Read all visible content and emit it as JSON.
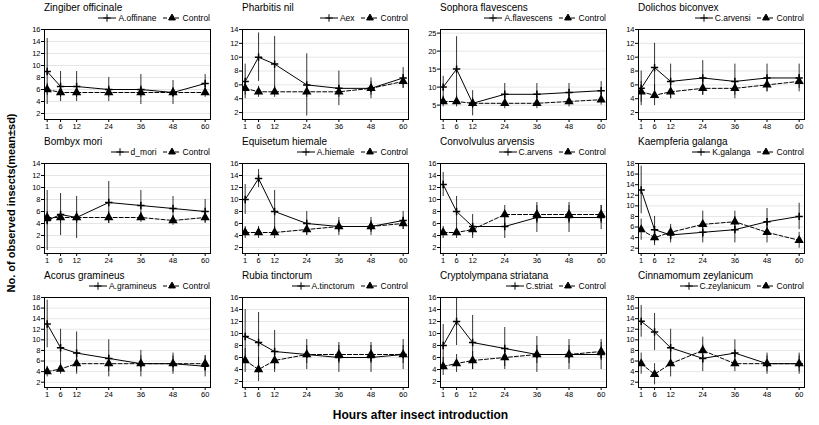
{
  "x_label": "Hours after insect introduction",
  "y_label": "No. of observed insects(mean±sd)",
  "chart_data": [
    {
      "type": "line",
      "title": "Zingiber officinale",
      "x": [
        1,
        6,
        12,
        24,
        36,
        48,
        60
      ],
      "xlim": [
        0,
        62
      ],
      "xticks": [
        1,
        6,
        12,
        24,
        36,
        48,
        60
      ],
      "ylim": [
        1,
        16
      ],
      "yticks": [
        2,
        4,
        6,
        8,
        10,
        12,
        14,
        16
      ],
      "grid": true,
      "legend": "upper right",
      "series": [
        {
          "name": "A.offinane",
          "color": "black",
          "line_style": "solid",
          "marker": "plus",
          "values": [
            9.0,
            6.5,
            6.5,
            6.0,
            6.0,
            5.5,
            7.0
          ],
          "yerr": [
            5.5,
            2.5,
            2.5,
            2.0,
            2.5,
            2.0,
            1.5
          ]
        },
        {
          "name": "Control",
          "color": "black",
          "line_style": "dashed",
          "marker": "triangle",
          "values": [
            6.0,
            5.5,
            5.5,
            5.5,
            5.5,
            5.5,
            5.5
          ],
          "yerr": [
            1.0,
            0.8,
            0.8,
            0.8,
            0.8,
            0.8,
            0.8
          ]
        }
      ]
    },
    {
      "type": "line",
      "title": "Pharbitis nil",
      "x": [
        1,
        6,
        12,
        24,
        36,
        48,
        60
      ],
      "xlim": [
        0,
        62
      ],
      "xticks": [
        1,
        6,
        12,
        24,
        36,
        48,
        60
      ],
      "ylim": [
        1,
        14
      ],
      "yticks": [
        2,
        4,
        6,
        8,
        10,
        12,
        14
      ],
      "grid": true,
      "legend": "upper right",
      "series": [
        {
          "name": "Aex",
          "color": "black",
          "line_style": "solid",
          "marker": "plus",
          "values": [
            6.5,
            10.0,
            9.0,
            6.0,
            5.5,
            5.5,
            7.0
          ],
          "yerr": [
            2.5,
            3.5,
            4.0,
            4.5,
            2.5,
            1.5,
            1.5
          ]
        },
        {
          "name": "Control",
          "color": "black",
          "line_style": "dashed",
          "marker": "triangle",
          "values": [
            5.5,
            5.0,
            5.0,
            5.0,
            5.0,
            5.5,
            6.5
          ],
          "yerr": [
            1.0,
            0.8,
            0.8,
            0.8,
            0.8,
            1.0,
            1.0
          ]
        }
      ]
    },
    {
      "type": "line",
      "title": "Sophora flavescens",
      "x": [
        1,
        6,
        12,
        24,
        36,
        48,
        60
      ],
      "xlim": [
        0,
        62
      ],
      "xticks": [
        1,
        6,
        12,
        24,
        36,
        48,
        60
      ],
      "ylim": [
        1,
        26
      ],
      "yticks": [
        5,
        10,
        15,
        20,
        25
      ],
      "grid": true,
      "legend": "upper right",
      "series": [
        {
          "name": "A.flavescens",
          "color": "black",
          "line_style": "solid",
          "marker": "plus",
          "values": [
            10.0,
            15.0,
            5.5,
            8.0,
            8.0,
            8.5,
            9.0
          ],
          "yerr": [
            3.0,
            9.0,
            3.5,
            3.0,
            3.0,
            2.5,
            2.5
          ]
        },
        {
          "name": "Control",
          "color": "black",
          "line_style": "dashed",
          "marker": "triangle",
          "values": [
            6.0,
            6.0,
            5.5,
            5.5,
            5.5,
            6.0,
            6.5
          ],
          "yerr": [
            1.5,
            1.5,
            1.5,
            1.5,
            1.5,
            1.5,
            1.5
          ]
        }
      ]
    },
    {
      "type": "line",
      "title": "Dolichos biconvex",
      "x": [
        1,
        6,
        12,
        24,
        36,
        48,
        60
      ],
      "xlim": [
        0,
        62
      ],
      "xticks": [
        1,
        6,
        12,
        24,
        36,
        48,
        60
      ],
      "ylim": [
        1,
        14
      ],
      "yticks": [
        2,
        4,
        6,
        8,
        10,
        12,
        14
      ],
      "grid": true,
      "legend": "upper right",
      "series": [
        {
          "name": "C.arvensi",
          "color": "black",
          "line_style": "solid",
          "marker": "plus",
          "values": [
            5.5,
            8.5,
            6.5,
            7.0,
            6.5,
            7.0,
            7.0
          ],
          "yerr": [
            2.5,
            3.5,
            2.5,
            2.5,
            2.5,
            2.0,
            2.0
          ]
        },
        {
          "name": "Control",
          "color": "black",
          "line_style": "dashed",
          "marker": "triangle",
          "values": [
            5.0,
            4.5,
            5.0,
            5.5,
            5.5,
            6.0,
            6.5
          ],
          "yerr": [
            1.5,
            1.5,
            1.0,
            1.0,
            1.0,
            1.0,
            1.0
          ]
        }
      ]
    },
    {
      "type": "line",
      "title": "Bombyx mori",
      "x": [
        1,
        6,
        12,
        24,
        36,
        48,
        60
      ],
      "xlim": [
        0,
        62
      ],
      "xticks": [
        1,
        6,
        12,
        24,
        36,
        48,
        60
      ],
      "ylim": [
        -1,
        14
      ],
      "yticks": [
        0,
        2,
        4,
        6,
        8,
        10,
        12,
        14
      ],
      "grid": true,
      "legend": "upper right",
      "series": [
        {
          "name": "d_mori",
          "color": "black",
          "line_style": "solid",
          "marker": "plus",
          "values": [
            4.5,
            5.5,
            5.0,
            7.5,
            7.0,
            6.5,
            6.0
          ],
          "yerr": [
            5.0,
            3.5,
            3.5,
            3.5,
            2.5,
            2.0,
            2.0
          ]
        },
        {
          "name": "Control",
          "color": "black",
          "line_style": "dashed",
          "marker": "triangle",
          "values": [
            5.0,
            5.0,
            5.0,
            5.0,
            5.0,
            4.5,
            5.0
          ],
          "yerr": [
            1.0,
            1.0,
            1.0,
            1.0,
            0.8,
            0.8,
            0.8
          ]
        }
      ]
    },
    {
      "type": "line",
      "title": "Equisetum hiemale",
      "x": [
        1,
        6,
        12,
        24,
        36,
        48,
        60
      ],
      "xlim": [
        0,
        62
      ],
      "xticks": [
        1,
        6,
        12,
        24,
        36,
        48,
        60
      ],
      "ylim": [
        1,
        16
      ],
      "yticks": [
        2,
        4,
        6,
        8,
        10,
        12,
        14,
        16
      ],
      "grid": true,
      "legend": "upper right",
      "series": [
        {
          "name": "A.hiemale",
          "color": "black",
          "line_style": "solid",
          "marker": "plus",
          "values": [
            10.0,
            13.5,
            8.0,
            6.0,
            5.5,
            5.5,
            6.5
          ],
          "yerr": [
            2.5,
            1.5,
            3.5,
            2.0,
            1.5,
            1.5,
            1.5
          ]
        },
        {
          "name": "Control",
          "color": "black",
          "line_style": "dashed",
          "marker": "triangle",
          "values": [
            4.5,
            4.5,
            4.5,
            5.0,
            5.5,
            5.5,
            6.0
          ],
          "yerr": [
            1.0,
            1.0,
            1.0,
            1.0,
            1.0,
            1.0,
            1.0
          ]
        }
      ]
    },
    {
      "type": "line",
      "title": "Convolvulus arvensis",
      "x": [
        1,
        6,
        12,
        24,
        36,
        48,
        60
      ],
      "xlim": [
        0,
        62
      ],
      "xticks": [
        1,
        6,
        12,
        24,
        36,
        48,
        60
      ],
      "ylim": [
        1,
        16
      ],
      "yticks": [
        2,
        4,
        6,
        8,
        10,
        12,
        14,
        16
      ],
      "grid": true,
      "legend": "upper right",
      "series": [
        {
          "name": "C.arvens",
          "color": "black",
          "line_style": "solid",
          "marker": "plus",
          "values": [
            12.5,
            8.0,
            5.5,
            5.5,
            7.0,
            7.0,
            7.0
          ],
          "yerr": [
            2.0,
            2.5,
            2.0,
            2.0,
            2.5,
            2.5,
            2.0
          ]
        },
        {
          "name": "Control",
          "color": "black",
          "line_style": "dashed",
          "marker": "triangle",
          "values": [
            4.5,
            4.5,
            5.0,
            7.5,
            7.5,
            7.5,
            7.5
          ],
          "yerr": [
            1.0,
            1.0,
            1.0,
            1.5,
            1.5,
            1.5,
            1.5
          ]
        }
      ]
    },
    {
      "type": "line",
      "title": "Kaempferia galanga",
      "x": [
        1,
        6,
        12,
        24,
        36,
        48,
        60
      ],
      "xlim": [
        0,
        62
      ],
      "xticks": [
        1,
        6,
        12,
        24,
        36,
        48,
        60
      ],
      "ylim": [
        1,
        18
      ],
      "yticks": [
        2,
        4,
        6,
        8,
        10,
        12,
        14,
        16,
        18
      ],
      "grid": true,
      "legend": "upper right",
      "series": [
        {
          "name": "K.galanga",
          "color": "black",
          "line_style": "solid",
          "marker": "plus",
          "values": [
            13.0,
            5.5,
            4.5,
            5.0,
            5.5,
            7.0,
            8.0
          ],
          "yerr": [
            4.5,
            2.5,
            1.5,
            2.0,
            2.5,
            2.5,
            2.5
          ]
        },
        {
          "name": "Control",
          "color": "black",
          "line_style": "dashed",
          "marker": "triangle",
          "values": [
            5.5,
            4.0,
            5.0,
            6.5,
            7.0,
            5.0,
            3.5
          ],
          "yerr": [
            2.0,
            1.5,
            1.5,
            2.5,
            2.0,
            2.0,
            1.5
          ]
        }
      ]
    },
    {
      "type": "line",
      "title": "Acorus gramineus",
      "x": [
        1,
        6,
        12,
        24,
        36,
        48,
        60
      ],
      "xlim": [
        0,
        62
      ],
      "xticks": [
        1,
        6,
        12,
        24,
        36,
        48,
        60
      ],
      "ylim": [
        1,
        18
      ],
      "yticks": [
        2,
        4,
        6,
        8,
        10,
        12,
        14,
        16,
        18
      ],
      "grid": true,
      "legend": "upper right",
      "series": [
        {
          "name": "A.gramineus",
          "color": "black",
          "line_style": "solid",
          "marker": "plus",
          "values": [
            13.0,
            8.5,
            7.5,
            6.5,
            5.5,
            5.5,
            5.0
          ],
          "yerr": [
            4.5,
            3.5,
            4.0,
            3.5,
            2.5,
            2.0,
            2.0
          ]
        },
        {
          "name": "Control",
          "color": "black",
          "line_style": "dashed",
          "marker": "triangle",
          "values": [
            4.0,
            4.5,
            5.5,
            5.5,
            5.5,
            5.5,
            5.5
          ],
          "yerr": [
            1.0,
            1.0,
            1.5,
            1.5,
            1.5,
            1.5,
            1.5
          ]
        }
      ]
    },
    {
      "type": "line",
      "title": "Rubia tinctorum",
      "x": [
        1,
        6,
        12,
        24,
        36,
        48,
        60
      ],
      "xlim": [
        0,
        62
      ],
      "xticks": [
        1,
        6,
        12,
        24,
        36,
        48,
        60
      ],
      "ylim": [
        1,
        16
      ],
      "yticks": [
        2,
        4,
        6,
        8,
        10,
        12,
        14,
        16
      ],
      "grid": true,
      "legend": "upper right",
      "series": [
        {
          "name": "A.tinctorum",
          "color": "black",
          "line_style": "solid",
          "marker": "plus",
          "values": [
            9.5,
            8.5,
            7.0,
            6.5,
            6.0,
            6.0,
            6.5
          ],
          "yerr": [
            4.5,
            5.0,
            3.5,
            2.5,
            2.5,
            2.5,
            2.5
          ]
        },
        {
          "name": "Control",
          "color": "black",
          "line_style": "dashed",
          "marker": "triangle",
          "values": [
            5.5,
            4.0,
            5.5,
            6.5,
            6.5,
            6.5,
            6.5
          ],
          "yerr": [
            2.0,
            2.0,
            1.5,
            1.5,
            1.5,
            1.5,
            1.5
          ]
        }
      ]
    },
    {
      "type": "line",
      "title": "Cryptolympana striatana",
      "x": [
        1,
        6,
        12,
        24,
        36,
        48,
        60
      ],
      "xlim": [
        0,
        62
      ],
      "xticks": [
        1,
        6,
        12,
        24,
        36,
        48,
        60
      ],
      "ylim": [
        1,
        16
      ],
      "yticks": [
        2,
        4,
        6,
        8,
        10,
        12,
        14,
        16
      ],
      "grid": true,
      "legend": "upper right",
      "series": [
        {
          "name": "C.striat",
          "color": "black",
          "line_style": "solid",
          "marker": "plus",
          "values": [
            8.0,
            12.0,
            8.5,
            7.5,
            6.5,
            6.5,
            6.5
          ],
          "yerr": [
            3.5,
            4.0,
            4.5,
            3.5,
            3.0,
            2.5,
            2.5
          ]
        },
        {
          "name": "Control",
          "color": "black",
          "line_style": "dashed",
          "marker": "triangle",
          "values": [
            4.5,
            5.0,
            5.5,
            6.0,
            6.5,
            6.5,
            7.0
          ],
          "yerr": [
            1.5,
            1.5,
            1.5,
            1.5,
            1.5,
            1.5,
            1.5
          ]
        }
      ]
    },
    {
      "type": "line",
      "title": "Cinnamomum zeylanicum",
      "x": [
        1,
        6,
        12,
        24,
        36,
        48,
        60
      ],
      "xlim": [
        0,
        62
      ],
      "xticks": [
        1,
        6,
        12,
        24,
        36,
        48,
        60
      ],
      "ylim": [
        1,
        18
      ],
      "yticks": [
        2,
        4,
        6,
        8,
        10,
        12,
        14,
        16,
        18
      ],
      "grid": true,
      "legend": "upper right",
      "series": [
        {
          "name": "C.zeylanicum",
          "color": "black",
          "line_style": "solid",
          "marker": "plus",
          "values": [
            13.5,
            11.5,
            8.5,
            6.5,
            7.5,
            5.5,
            5.5
          ],
          "yerr": [
            3.0,
            3.5,
            3.5,
            2.5,
            2.5,
            2.0,
            2.0
          ]
        },
        {
          "name": "Control",
          "color": "black",
          "line_style": "dashed",
          "marker": "triangle",
          "values": [
            5.5,
            3.5,
            5.5,
            8.0,
            5.5,
            5.5,
            5.5
          ],
          "yerr": [
            2.0,
            2.0,
            2.5,
            2.5,
            1.5,
            1.5,
            1.5
          ]
        }
      ]
    }
  ]
}
